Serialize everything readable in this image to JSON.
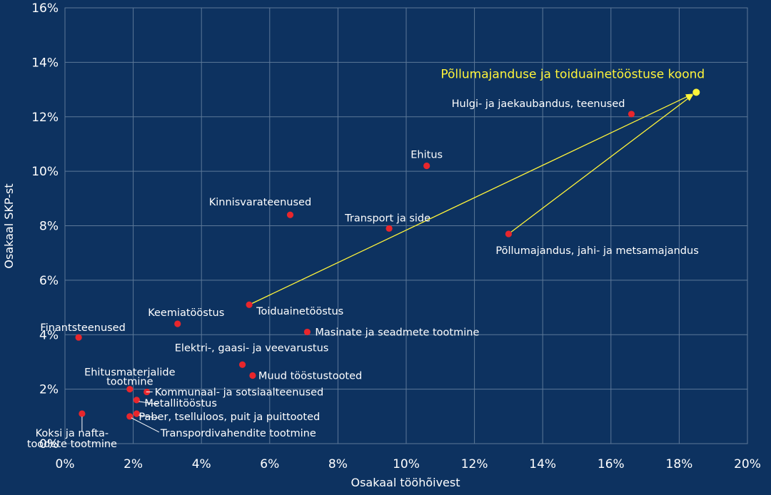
{
  "chart_data": {
    "type": "scatter",
    "xlabel": "Osakaal tööhõivest",
    "ylabel": "Osakaal SKP-st",
    "xlim": [
      0,
      20
    ],
    "ylim": [
      0,
      16
    ],
    "x_ticks": [
      "0%",
      "2%",
      "4%",
      "6%",
      "8%",
      "10%",
      "12%",
      "14%",
      "16%",
      "18%",
      "20%"
    ],
    "y_ticks": [
      "0%",
      "2%",
      "4%",
      "6%",
      "8%",
      "10%",
      "12%",
      "14%",
      "16%"
    ],
    "grid": true,
    "colors": {
      "background": "#0d3260",
      "grid": "#5d7898",
      "point": "#e8262c",
      "highlight": "#fff43a",
      "text": "#ffffff"
    },
    "points": [
      {
        "label": "Põllumajandus, jahi- ja metsamajandus",
        "x": 13.0,
        "y": 7.7
      },
      {
        "label": "Toiduainetööstus",
        "x": 5.4,
        "y": 5.1
      },
      {
        "label": "Hulgi- ja jaekaubandus, teenused",
        "x": 16.6,
        "y": 12.1
      },
      {
        "label": "Ehitus",
        "x": 10.6,
        "y": 10.2
      },
      {
        "label": "Kinnisvarateenused",
        "x": 6.6,
        "y": 8.4
      },
      {
        "label": "Transport ja side",
        "x": 9.5,
        "y": 7.9
      },
      {
        "label": "Keemiatööstus",
        "x": 3.3,
        "y": 4.4
      },
      {
        "label": "Finantsteenused",
        "x": 0.4,
        "y": 3.9
      },
      {
        "label": "Masinate ja seadmete tootmine",
        "x": 7.1,
        "y": 4.1
      },
      {
        "label": "Elektri-, gaasi- ja veevarustus",
        "x": 5.2,
        "y": 2.9
      },
      {
        "label": "Muud tööstustooted",
        "x": 5.5,
        "y": 2.5
      },
      {
        "label": "Ehitusmaterjalide tootmine",
        "x": 1.9,
        "y": 2.0
      },
      {
        "label": "Kommunaal- ja sotsiaalteenused",
        "x": 2.4,
        "y": 1.9
      },
      {
        "label": "Metallitööstus",
        "x": 2.1,
        "y": 1.6
      },
      {
        "label": "Paber, tselluloos, puit ja puittooted",
        "x": 2.1,
        "y": 1.1
      },
      {
        "label": "Transpordivahendite tootmine",
        "x": 1.9,
        "y": 1.0
      },
      {
        "label": "Koksi ja nafta-toodete tootmine",
        "x": 0.5,
        "y": 1.1
      }
    ],
    "highlight": {
      "label": "Põllumajanduse ja toiduainetööstuse koond",
      "x": 18.5,
      "y": 12.9
    }
  }
}
